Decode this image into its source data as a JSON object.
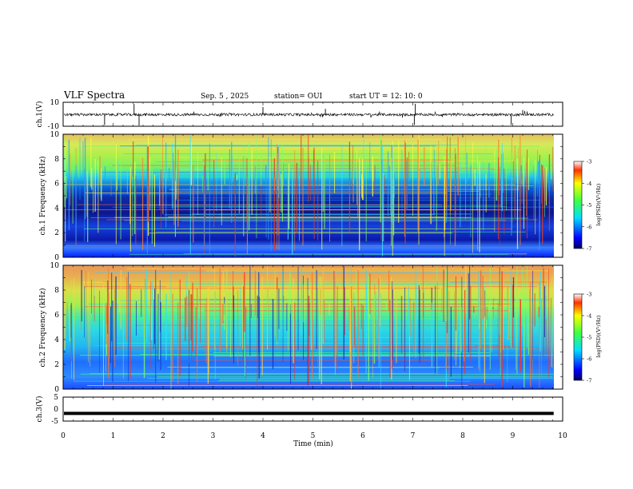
{
  "header": {
    "title": "VLF Spectra",
    "date": "Sep. 5 , 2025",
    "station": "station= OUI",
    "start": "start UT = 12: 10: 0"
  },
  "chart_data": [
    {
      "type": "line",
      "panel": "ch1-waveform",
      "ylabel": "ch.1(V)",
      "ylim": [
        -10,
        10
      ],
      "yticks": [
        "10",
        "-10"
      ],
      "xlim": [
        0,
        10
      ],
      "baseline": -0.3,
      "spikes": [
        {
          "x": 0.83,
          "y": -9.0
        },
        {
          "x": 1.42,
          "y": 8.6
        },
        {
          "x": 1.52,
          "y": -9.4
        },
        {
          "x": 4.0,
          "y": 6.0
        },
        {
          "x": 7.05,
          "y": 8.7
        },
        {
          "x": 7.03,
          "y": -8.9
        },
        {
          "x": 8.97,
          "y": -9.0
        },
        {
          "x": 5.25,
          "y": 4.5
        },
        {
          "x": 9.2,
          "y": 3.5
        }
      ]
    },
    {
      "type": "heatmap",
      "panel": "ch1-spectrogram",
      "ylabel": "ch.1 Frequency (kHz)",
      "ylim": [
        0,
        10
      ],
      "yticks": [
        "0",
        "2",
        "4",
        "6",
        "8",
        "10"
      ],
      "xlim": [
        0,
        10
      ],
      "colorbar": {
        "label": "log(PSD)(V²/Hz)",
        "range": [
          -7,
          -3
        ],
        "ticks": [
          "-3",
          "-4",
          "-5",
          "-6",
          "-7"
        ]
      }
    },
    {
      "type": "heatmap",
      "panel": "ch2-spectrogram",
      "ylabel": "ch.2 Frequency (kHz)",
      "ylim": [
        0,
        10
      ],
      "yticks": [
        "0",
        "2",
        "4",
        "6",
        "8",
        "10"
      ],
      "xlim": [
        0,
        10
      ],
      "colorbar": {
        "label": "log(PSD)(V²/Hz)",
        "range": [
          -7,
          -3
        ],
        "ticks": [
          "-3",
          "-4",
          "-5",
          "-6",
          "-7"
        ]
      }
    },
    {
      "type": "line",
      "panel": "ch3-waveform",
      "ylabel": "ch.3(V)",
      "ylim": [
        -5,
        5
      ],
      "yticks": [
        "5",
        "0",
        "-5"
      ],
      "xlim": [
        0,
        10
      ],
      "xticks": [
        "0",
        "1",
        "2",
        "3",
        "4",
        "5",
        "6",
        "7",
        "8",
        "9",
        "10"
      ],
      "xlabel": "Time (min)",
      "baseline": -1.8
    }
  ]
}
